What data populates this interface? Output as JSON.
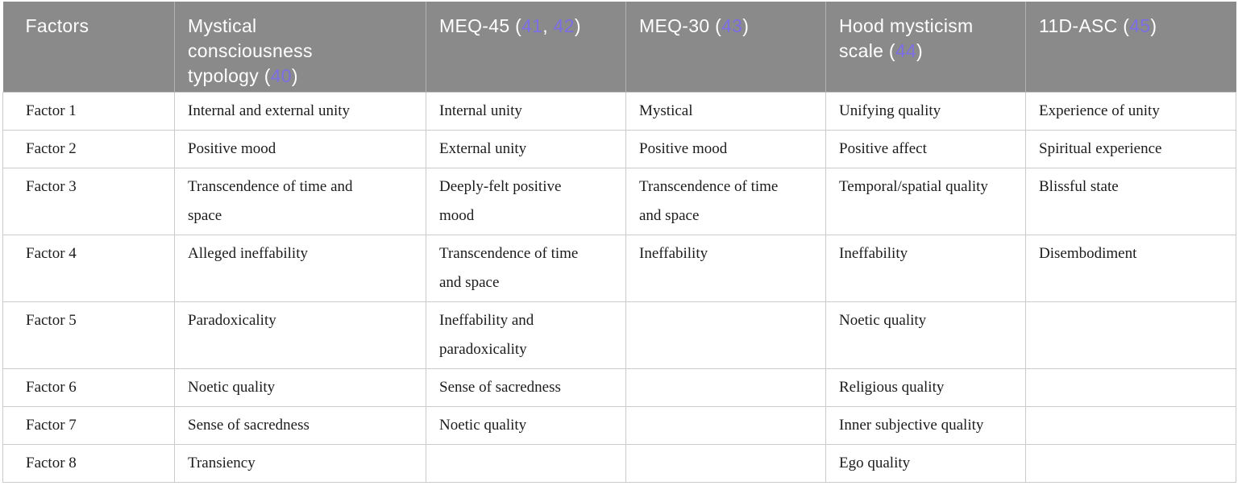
{
  "colors": {
    "header_bg": "#8a8a8a",
    "citation": "#7c6ee4",
    "border": "#cbcbcb",
    "header_divider": "#b2b2b2",
    "body_text": "#1c1c1c"
  },
  "table": {
    "columns": [
      {
        "id": "factors",
        "parts": [
          {
            "text": "Factors"
          }
        ]
      },
      {
        "id": "mystical-consciousness-typology",
        "parts": [
          {
            "text": "Mystical consciousness typology ("
          },
          {
            "text": "40",
            "cite": true
          },
          {
            "text": ")"
          }
        ]
      },
      {
        "id": "meq-45",
        "parts": [
          {
            "text": "MEQ-45 ("
          },
          {
            "text": "41",
            "cite": true
          },
          {
            "text": ", "
          },
          {
            "text": "42",
            "cite": true
          },
          {
            "text": ")"
          }
        ]
      },
      {
        "id": "meq-30",
        "parts": [
          {
            "text": "MEQ-30 ("
          },
          {
            "text": "43",
            "cite": true
          },
          {
            "text": ")"
          }
        ]
      },
      {
        "id": "hood-mysticism-scale",
        "parts": [
          {
            "text": "Hood mysticism scale ("
          },
          {
            "text": "44",
            "cite": true
          },
          {
            "text": ")"
          }
        ]
      },
      {
        "id": "11d-asc",
        "parts": [
          {
            "text": "11D-ASC ("
          },
          {
            "text": "45",
            "cite": true
          },
          {
            "text": ")"
          }
        ]
      }
    ],
    "rows": [
      [
        "Factor 1",
        "Internal and external unity",
        "Internal unity",
        "Mystical",
        "Unifying quality",
        "Experience of unity"
      ],
      [
        "Factor 2",
        "Positive mood",
        "External unity",
        "Positive mood",
        "Positive affect",
        "Spiritual experience"
      ],
      [
        "Factor 3",
        "Transcendence of time and space",
        "Deeply-felt positive mood",
        "Transcendence of time and space",
        "Temporal/spatial quality",
        "Blissful state"
      ],
      [
        "Factor 4",
        "Alleged ineffability",
        "Transcendence of time and space",
        "Ineffability",
        "Ineffability",
        "Disembodiment"
      ],
      [
        "Factor 5",
        "Paradoxicality",
        "Ineffability and paradoxicality",
        "",
        "Noetic quality",
        ""
      ],
      [
        "Factor 6",
        "Noetic quality",
        "Sense of sacredness",
        "",
        "Religious quality",
        ""
      ],
      [
        "Factor 7",
        "Sense of sacredness",
        "Noetic quality",
        "",
        "Inner subjective quality",
        ""
      ],
      [
        "Factor 8",
        "Transiency",
        "",
        "",
        "Ego quality",
        ""
      ]
    ]
  }
}
